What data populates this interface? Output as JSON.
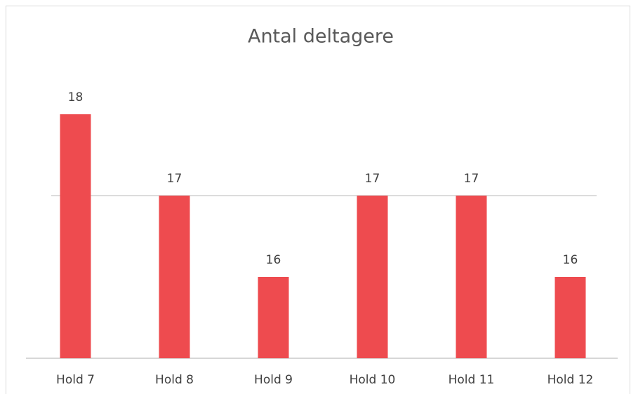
{
  "chart_data": {
    "type": "bar",
    "title": "Antal deltagere",
    "categories": [
      "Hold 7",
      "Hold 8",
      "Hold 9",
      "Hold 10",
      "Hold 11",
      "Hold 12"
    ],
    "values": [
      18,
      17,
      16,
      17,
      17,
      16
    ],
    "color": "#ee4b4f",
    "ylim": [
      15,
      18.5
    ],
    "yticks": [
      15,
      17
    ],
    "grid": true
  }
}
